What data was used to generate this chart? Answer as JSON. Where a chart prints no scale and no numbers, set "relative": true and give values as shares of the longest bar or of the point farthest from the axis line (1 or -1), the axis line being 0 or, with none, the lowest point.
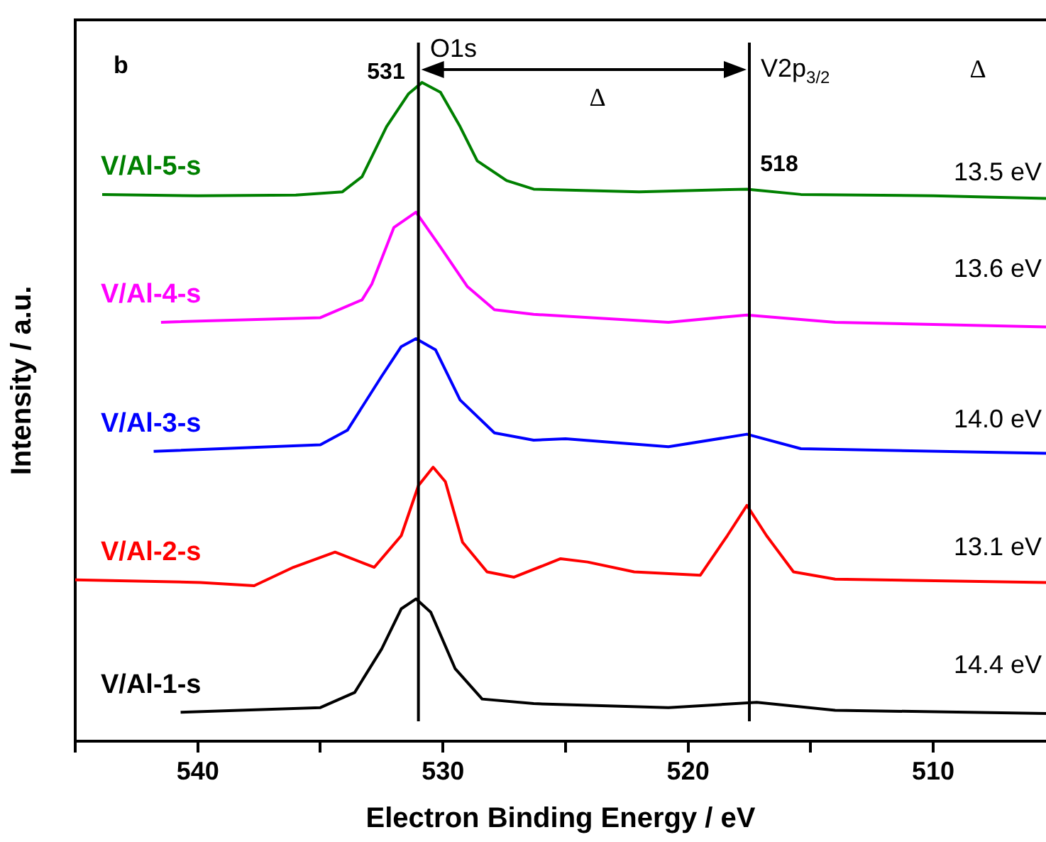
{
  "chart_data": {
    "type": "line",
    "xlabel": "Electron Binding Energy / eV",
    "ylabel": "Intensity / a.u.",
    "relative": true,
    "xlim": [
      545,
      505.4
    ],
    "xticks": [
      {
        "value": 545,
        "label": null
      },
      540,
      {
        "value": 535,
        "label": null
      },
      530,
      {
        "value": 525,
        "label": null
      },
      520,
      {
        "value": 515,
        "label": null
      },
      510
    ],
    "grid": false,
    "legend": false,
    "marker": "none",
    "line_style": "solid",
    "series": [
      {
        "name": "V/Al-5-s",
        "color": "#008000",
        "x": [
          543.9,
          540,
          536,
          534.1,
          533.3,
          532.3,
          531.4,
          530.85,
          530.1,
          529.3,
          528.6,
          527.4,
          526.3,
          522,
          517.6,
          515.4,
          510,
          505.4
        ],
        "values": [
          0.83,
          0.828,
          0.829,
          0.834,
          0.857,
          0.933,
          0.983,
          1.0,
          0.985,
          0.933,
          0.881,
          0.851,
          0.838,
          0.834,
          0.838,
          0.83,
          0.828,
          0.824
        ]
      },
      {
        "name": "V/Al-4-s",
        "color": "#ff00ff",
        "x": [
          541.5,
          535,
          533.3,
          532.9,
          532,
          531.1,
          530.1,
          529,
          527.9,
          526.3,
          520.8,
          517.6,
          514,
          505.4
        ],
        "values": [
          0.636,
          0.643,
          0.67,
          0.694,
          0.78,
          0.803,
          0.75,
          0.69,
          0.655,
          0.648,
          0.636,
          0.647,
          0.636,
          0.629
        ]
      },
      {
        "name": "V/Al-3-s",
        "color": "#0000ff",
        "x": [
          541.8,
          535,
          533.9,
          532.5,
          531.7,
          531.1,
          530.3,
          529.3,
          527.9,
          526.3,
          525,
          520.8,
          517.6,
          515.4,
          505.4
        ],
        "values": [
          0.44,
          0.45,
          0.472,
          0.554,
          0.599,
          0.611,
          0.594,
          0.518,
          0.468,
          0.457,
          0.459,
          0.447,
          0.466,
          0.444,
          0.437
        ]
      },
      {
        "name": "V/Al-2-s",
        "color": "#ff0000",
        "x": [
          545,
          539.9,
          537.7,
          536.1,
          534.4,
          532.8,
          531.7,
          531,
          530.4,
          529.9,
          529.2,
          528.2,
          527.1,
          525.2,
          524.1,
          522.2,
          519.5,
          518.4,
          517.6,
          516.8,
          515.7,
          514,
          505.4
        ],
        "values": [
          0.245,
          0.241,
          0.236,
          0.264,
          0.287,
          0.264,
          0.312,
          0.388,
          0.416,
          0.394,
          0.302,
          0.257,
          0.249,
          0.277,
          0.272,
          0.257,
          0.252,
          0.312,
          0.358,
          0.312,
          0.257,
          0.246,
          0.241
        ]
      },
      {
        "name": "V/Al-1-s",
        "color": "#000000",
        "x": [
          540.7,
          535,
          533.6,
          532.5,
          531.7,
          531.1,
          530.5,
          529.5,
          528.4,
          526.3,
          520.8,
          517.2,
          514,
          505.4
        ],
        "values": [
          0.044,
          0.051,
          0.074,
          0.14,
          0.201,
          0.216,
          0.196,
          0.11,
          0.064,
          0.057,
          0.051,
          0.059,
          0.047,
          0.042
        ]
      }
    ],
    "ref_lines": [
      {
        "axis": "x",
        "value": 531,
        "color": "#000000"
      },
      {
        "axis": "x",
        "value": 517.5,
        "color": "#000000"
      }
    ],
    "annotations": [
      "b",
      "O1s",
      "V2p$_{3/2}$",
      "Δ",
      "Δ",
      "531",
      "518",
      "13.5 eV",
      "13.6 eV",
      "14.0 eV",
      "13.1 eV",
      "14.4 eV"
    ]
  }
}
